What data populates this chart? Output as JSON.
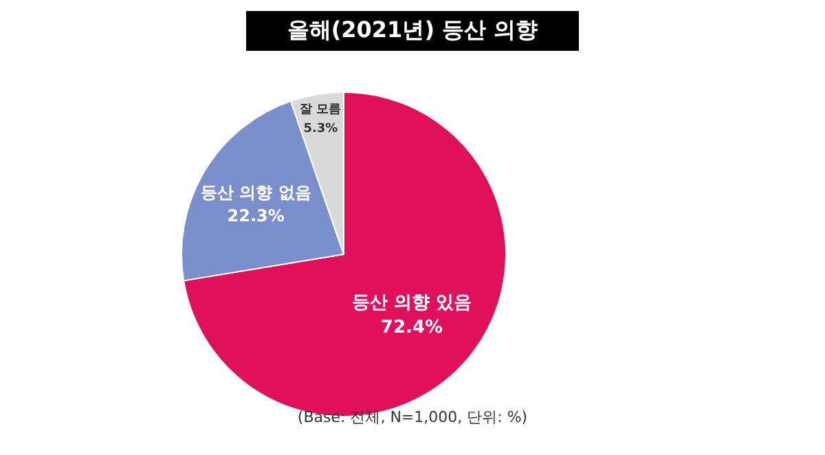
{
  "chart_data": {
    "type": "pie",
    "title": "올해(2021년) 등산 의향",
    "categories": [
      "등산 의향 있음",
      "등산 의향 없음",
      "잘 모름"
    ],
    "values": [
      72.4,
      22.3,
      5.3
    ],
    "colors": [
      "#e0105a",
      "#7b8fcc",
      "#d9d9d9"
    ],
    "value_labels": [
      "72.4%",
      "22.3%",
      "5.3%"
    ],
    "annotations": [
      "(Base: 전체, N=1,000, 단위: %)"
    ]
  }
}
